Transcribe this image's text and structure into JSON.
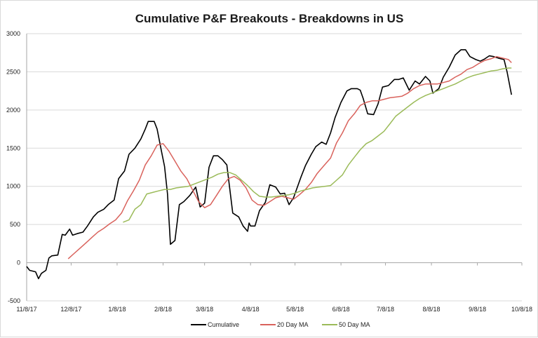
{
  "chart_data": {
    "type": "line",
    "title": "Cumulative P&F Breakouts - Breakdowns in US",
    "xlabel": "",
    "ylabel": "",
    "ylim": [
      -500,
      3000
    ],
    "yticks": [
      -500,
      0,
      500,
      1000,
      1500,
      2000,
      2500,
      3000
    ],
    "xlim": [
      "2017-11-08",
      "2018-10-08"
    ],
    "xticks": [
      "11/8/17",
      "12/8/17",
      "1/8/18",
      "2/8/18",
      "3/8/18",
      "4/8/18",
      "5/8/18",
      "6/8/18",
      "7/8/18",
      "8/8/18",
      "9/8/18",
      "10/8/18"
    ],
    "grid": true,
    "legend": "bottom",
    "series": [
      {
        "name": "Cumulative",
        "color": "#000000",
        "points": [
          [
            "2017-11-08",
            -50
          ],
          [
            "2017-11-10",
            -100
          ],
          [
            "2017-11-14",
            -120
          ],
          [
            "2017-11-16",
            -210
          ],
          [
            "2017-11-18",
            -140
          ],
          [
            "2017-11-21",
            -100
          ],
          [
            "2017-11-23",
            60
          ],
          [
            "2017-11-25",
            90
          ],
          [
            "2017-11-29",
            100
          ],
          [
            "2017-12-02",
            370
          ],
          [
            "2017-12-04",
            360
          ],
          [
            "2017-12-07",
            440
          ],
          [
            "2017-12-09",
            360
          ],
          [
            "2017-12-12",
            380
          ],
          [
            "2017-12-16",
            400
          ],
          [
            "2017-12-19",
            480
          ],
          [
            "2017-12-23",
            600
          ],
          [
            "2017-12-26",
            660
          ],
          [
            "2017-12-30",
            700
          ],
          [
            "2018-01-02",
            760
          ],
          [
            "2018-01-06",
            820
          ],
          [
            "2018-01-09",
            1100
          ],
          [
            "2018-01-13",
            1200
          ],
          [
            "2018-01-16",
            1420
          ],
          [
            "2018-01-20",
            1500
          ],
          [
            "2018-01-24",
            1620
          ],
          [
            "2018-01-27",
            1750
          ],
          [
            "2018-01-29",
            1850
          ],
          [
            "2018-02-02",
            1850
          ],
          [
            "2018-02-04",
            1750
          ],
          [
            "2018-02-07",
            1450
          ],
          [
            "2018-02-09",
            1260
          ],
          [
            "2018-02-11",
            900
          ],
          [
            "2018-02-13",
            240
          ],
          [
            "2018-02-16",
            290
          ],
          [
            "2018-02-19",
            760
          ],
          [
            "2018-02-22",
            800
          ],
          [
            "2018-02-26",
            880
          ],
          [
            "2018-03-02",
            990
          ],
          [
            "2018-03-05",
            730
          ],
          [
            "2018-03-08",
            780
          ],
          [
            "2018-03-11",
            1250
          ],
          [
            "2018-03-14",
            1400
          ],
          [
            "2018-03-17",
            1400
          ],
          [
            "2018-03-20",
            1350
          ],
          [
            "2018-03-23",
            1280
          ],
          [
            "2018-03-27",
            650
          ],
          [
            "2018-03-31",
            600
          ],
          [
            "2018-04-03",
            480
          ],
          [
            "2018-04-06",
            410
          ],
          [
            "2018-04-07",
            520
          ],
          [
            "2018-04-08",
            480
          ],
          [
            "2018-04-11",
            480
          ],
          [
            "2018-04-14",
            680
          ],
          [
            "2018-04-18",
            790
          ],
          [
            "2018-04-21",
            1020
          ],
          [
            "2018-04-25",
            990
          ],
          [
            "2018-04-28",
            900
          ],
          [
            "2018-05-01",
            910
          ],
          [
            "2018-05-04",
            760
          ],
          [
            "2018-05-07",
            850
          ],
          [
            "2018-05-12",
            1120
          ],
          [
            "2018-05-15",
            1270
          ],
          [
            "2018-05-19",
            1420
          ],
          [
            "2018-05-22",
            1520
          ],
          [
            "2018-05-26",
            1580
          ],
          [
            "2018-05-29",
            1550
          ],
          [
            "2018-06-01",
            1700
          ],
          [
            "2018-06-04",
            1900
          ],
          [
            "2018-06-08",
            2100
          ],
          [
            "2018-06-12",
            2250
          ],
          [
            "2018-06-15",
            2280
          ],
          [
            "2018-06-19",
            2280
          ],
          [
            "2018-06-21",
            2260
          ],
          [
            "2018-06-23",
            2150
          ],
          [
            "2018-06-26",
            1950
          ],
          [
            "2018-06-30",
            1940
          ],
          [
            "2018-07-03",
            2080
          ],
          [
            "2018-07-06",
            2300
          ],
          [
            "2018-07-10",
            2320
          ],
          [
            "2018-07-14",
            2400
          ],
          [
            "2018-07-17",
            2400
          ],
          [
            "2018-07-20",
            2420
          ],
          [
            "2018-07-24",
            2260
          ],
          [
            "2018-07-28",
            2380
          ],
          [
            "2018-07-31",
            2340
          ],
          [
            "2018-08-04",
            2440
          ],
          [
            "2018-08-07",
            2380
          ],
          [
            "2018-08-09",
            2220
          ],
          [
            "2018-08-13",
            2280
          ],
          [
            "2018-08-16",
            2430
          ],
          [
            "2018-08-20",
            2560
          ],
          [
            "2018-08-24",
            2720
          ],
          [
            "2018-08-28",
            2790
          ],
          [
            "2018-08-31",
            2790
          ],
          [
            "2018-09-03",
            2700
          ],
          [
            "2018-09-07",
            2660
          ],
          [
            "2018-09-10",
            2640
          ],
          [
            "2018-09-13",
            2670
          ],
          [
            "2018-09-16",
            2710
          ],
          [
            "2018-09-19",
            2700
          ],
          [
            "2018-09-22",
            2680
          ],
          [
            "2018-09-26",
            2660
          ],
          [
            "2018-09-28",
            2500
          ],
          [
            "2018-10-01",
            2200
          ]
        ]
      },
      {
        "name": "20 Day MA",
        "color": "#d9625c",
        "points": [
          [
            "2017-12-06",
            50
          ],
          [
            "2017-12-10",
            120
          ],
          [
            "2017-12-14",
            190
          ],
          [
            "2017-12-18",
            260
          ],
          [
            "2017-12-22",
            330
          ],
          [
            "2017-12-26",
            400
          ],
          [
            "2017-12-30",
            450
          ],
          [
            "2018-01-03",
            510
          ],
          [
            "2018-01-07",
            560
          ],
          [
            "2018-01-11",
            650
          ],
          [
            "2018-01-15",
            810
          ],
          [
            "2018-01-19",
            940
          ],
          [
            "2018-01-23",
            1080
          ],
          [
            "2018-01-27",
            1280
          ],
          [
            "2018-01-31",
            1400
          ],
          [
            "2018-02-04",
            1540
          ],
          [
            "2018-02-08",
            1560
          ],
          [
            "2018-02-12",
            1460
          ],
          [
            "2018-02-16",
            1330
          ],
          [
            "2018-02-20",
            1200
          ],
          [
            "2018-02-24",
            1100
          ],
          [
            "2018-02-28",
            950
          ],
          [
            "2018-03-04",
            800
          ],
          [
            "2018-03-08",
            720
          ],
          [
            "2018-03-12",
            760
          ],
          [
            "2018-03-16",
            880
          ],
          [
            "2018-03-20",
            1000
          ],
          [
            "2018-03-24",
            1100
          ],
          [
            "2018-03-28",
            1130
          ],
          [
            "2018-04-01",
            1080
          ],
          [
            "2018-04-05",
            980
          ],
          [
            "2018-04-09",
            820
          ],
          [
            "2018-04-13",
            760
          ],
          [
            "2018-04-17",
            750
          ],
          [
            "2018-04-21",
            800
          ],
          [
            "2018-04-25",
            850
          ],
          [
            "2018-04-29",
            870
          ],
          [
            "2018-05-03",
            850
          ],
          [
            "2018-05-07",
            830
          ],
          [
            "2018-05-11",
            890
          ],
          [
            "2018-05-15",
            960
          ],
          [
            "2018-05-19",
            1050
          ],
          [
            "2018-05-23",
            1170
          ],
          [
            "2018-05-27",
            1260
          ],
          [
            "2018-06-01",
            1370
          ],
          [
            "2018-06-05",
            1570
          ],
          [
            "2018-06-09",
            1700
          ],
          [
            "2018-06-13",
            1860
          ],
          [
            "2018-06-17",
            1950
          ],
          [
            "2018-06-21",
            2060
          ],
          [
            "2018-06-25",
            2100
          ],
          [
            "2018-06-29",
            2120
          ],
          [
            "2018-07-03",
            2120
          ],
          [
            "2018-07-07",
            2140
          ],
          [
            "2018-07-11",
            2160
          ],
          [
            "2018-07-15",
            2170
          ],
          [
            "2018-07-19",
            2180
          ],
          [
            "2018-07-23",
            2220
          ],
          [
            "2018-07-27",
            2280
          ],
          [
            "2018-07-31",
            2320
          ],
          [
            "2018-08-04",
            2340
          ],
          [
            "2018-08-08",
            2340
          ],
          [
            "2018-08-12",
            2340
          ],
          [
            "2018-08-16",
            2360
          ],
          [
            "2018-08-20",
            2380
          ],
          [
            "2018-08-24",
            2430
          ],
          [
            "2018-08-28",
            2470
          ],
          [
            "2018-09-01",
            2530
          ],
          [
            "2018-09-05",
            2560
          ],
          [
            "2018-09-09",
            2610
          ],
          [
            "2018-09-13",
            2650
          ],
          [
            "2018-09-17",
            2670
          ],
          [
            "2018-09-21",
            2700
          ],
          [
            "2018-09-25",
            2680
          ],
          [
            "2018-09-29",
            2660
          ],
          [
            "2018-10-01",
            2620
          ]
        ]
      },
      {
        "name": "50 Day MA",
        "color": "#9bbb59",
        "points": [
          [
            "2018-01-12",
            530
          ],
          [
            "2018-01-16",
            560
          ],
          [
            "2018-01-20",
            700
          ],
          [
            "2018-01-24",
            760
          ],
          [
            "2018-01-28",
            900
          ],
          [
            "2018-02-01",
            920
          ],
          [
            "2018-02-05",
            940
          ],
          [
            "2018-02-09",
            960
          ],
          [
            "2018-02-13",
            960
          ],
          [
            "2018-02-17",
            980
          ],
          [
            "2018-02-21",
            990
          ],
          [
            "2018-02-25",
            1000
          ],
          [
            "2018-03-01",
            1030
          ],
          [
            "2018-03-05",
            1060
          ],
          [
            "2018-03-09",
            1090
          ],
          [
            "2018-03-13",
            1120
          ],
          [
            "2018-03-17",
            1160
          ],
          [
            "2018-03-21",
            1180
          ],
          [
            "2018-03-25",
            1180
          ],
          [
            "2018-03-29",
            1150
          ],
          [
            "2018-04-02",
            1080
          ],
          [
            "2018-04-06",
            1010
          ],
          [
            "2018-04-10",
            930
          ],
          [
            "2018-04-14",
            870
          ],
          [
            "2018-04-18",
            860
          ],
          [
            "2018-04-22",
            860
          ],
          [
            "2018-04-26",
            870
          ],
          [
            "2018-04-30",
            880
          ],
          [
            "2018-05-04",
            890
          ],
          [
            "2018-05-08",
            910
          ],
          [
            "2018-05-12",
            940
          ],
          [
            "2018-05-16",
            960
          ],
          [
            "2018-05-20",
            980
          ],
          [
            "2018-05-24",
            990
          ],
          [
            "2018-05-28",
            1000
          ],
          [
            "2018-06-01",
            1010
          ],
          [
            "2018-06-05",
            1080
          ],
          [
            "2018-06-09",
            1150
          ],
          [
            "2018-06-13",
            1280
          ],
          [
            "2018-06-17",
            1380
          ],
          [
            "2018-06-21",
            1480
          ],
          [
            "2018-06-25",
            1560
          ],
          [
            "2018-06-29",
            1600
          ],
          [
            "2018-07-03",
            1660
          ],
          [
            "2018-07-07",
            1720
          ],
          [
            "2018-07-11",
            1820
          ],
          [
            "2018-07-15",
            1920
          ],
          [
            "2018-07-19",
            1980
          ],
          [
            "2018-07-23",
            2040
          ],
          [
            "2018-07-27",
            2100
          ],
          [
            "2018-07-31",
            2150
          ],
          [
            "2018-08-04",
            2190
          ],
          [
            "2018-08-08",
            2220
          ],
          [
            "2018-08-12",
            2250
          ],
          [
            "2018-08-16",
            2280
          ],
          [
            "2018-08-20",
            2310
          ],
          [
            "2018-08-24",
            2340
          ],
          [
            "2018-08-28",
            2380
          ],
          [
            "2018-09-01",
            2420
          ],
          [
            "2018-09-05",
            2450
          ],
          [
            "2018-09-09",
            2470
          ],
          [
            "2018-09-13",
            2490
          ],
          [
            "2018-09-17",
            2510
          ],
          [
            "2018-09-21",
            2520
          ],
          [
            "2018-09-25",
            2540
          ],
          [
            "2018-09-29",
            2550
          ],
          [
            "2018-10-01",
            2550
          ]
        ]
      }
    ]
  }
}
